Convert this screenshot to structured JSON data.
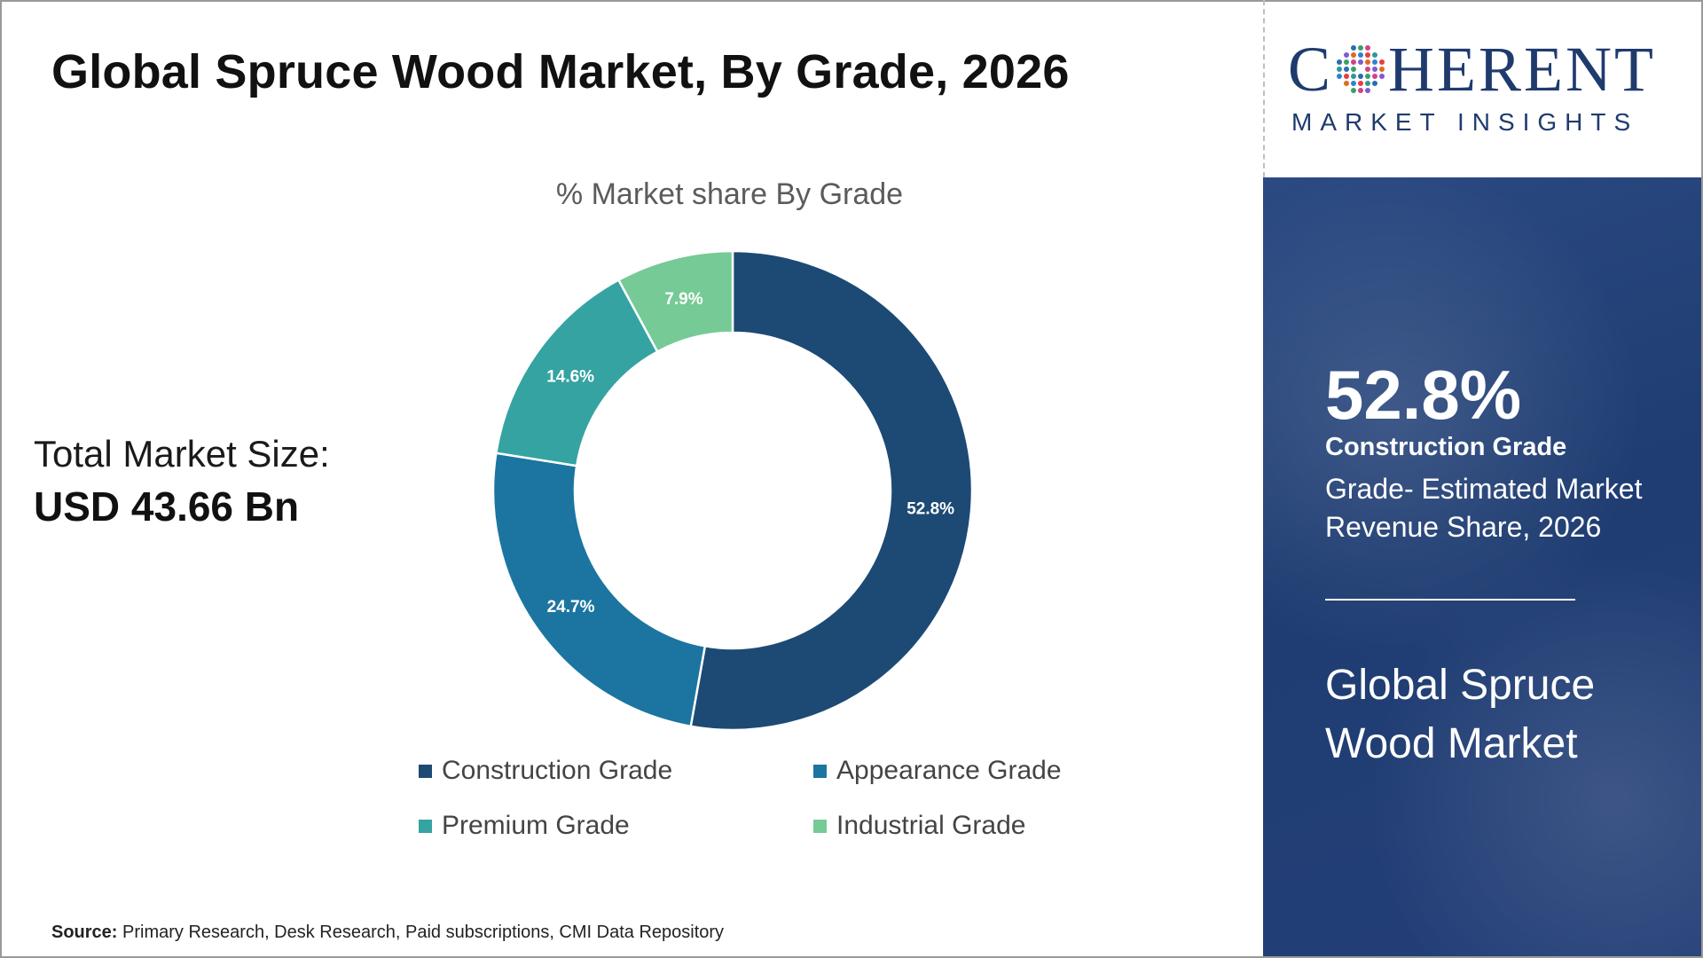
{
  "title": "Global Spruce Wood Market, By Grade, 2026",
  "total_market": {
    "label": "Total Market Size:",
    "value": "USD 43.66 Bn"
  },
  "source": {
    "label": "Source:",
    "text": "Primary Research, Desk Research, Paid subscriptions, CMI Data Repository"
  },
  "logo": {
    "name": "COHERENT",
    "tagline": "MARKET INSIGHTS",
    "brand_color": "#1f3b6e"
  },
  "highlight": {
    "value": "52.8%",
    "segment": "Construction Grade",
    "description": "Grade- Estimated Market Revenue Share, 2026",
    "market_name": "Global Spruce Wood Market",
    "panel_color": "#243f76"
  },
  "chart_data": {
    "type": "pie",
    "subtitle": "% Market share By Grade",
    "donut": true,
    "legend_position": "bottom",
    "categories": [
      "Construction Grade",
      "Appearance Grade",
      "Premium Grade",
      "Industrial Grade"
    ],
    "values": [
      52.8,
      24.7,
      14.6,
      7.9
    ],
    "labels": [
      "52.8%",
      "24.7%",
      "14.6%",
      "7.9%"
    ],
    "colors": [
      "#1c4a74",
      "#1c75a0",
      "#35a3a1",
      "#76ca95"
    ]
  }
}
